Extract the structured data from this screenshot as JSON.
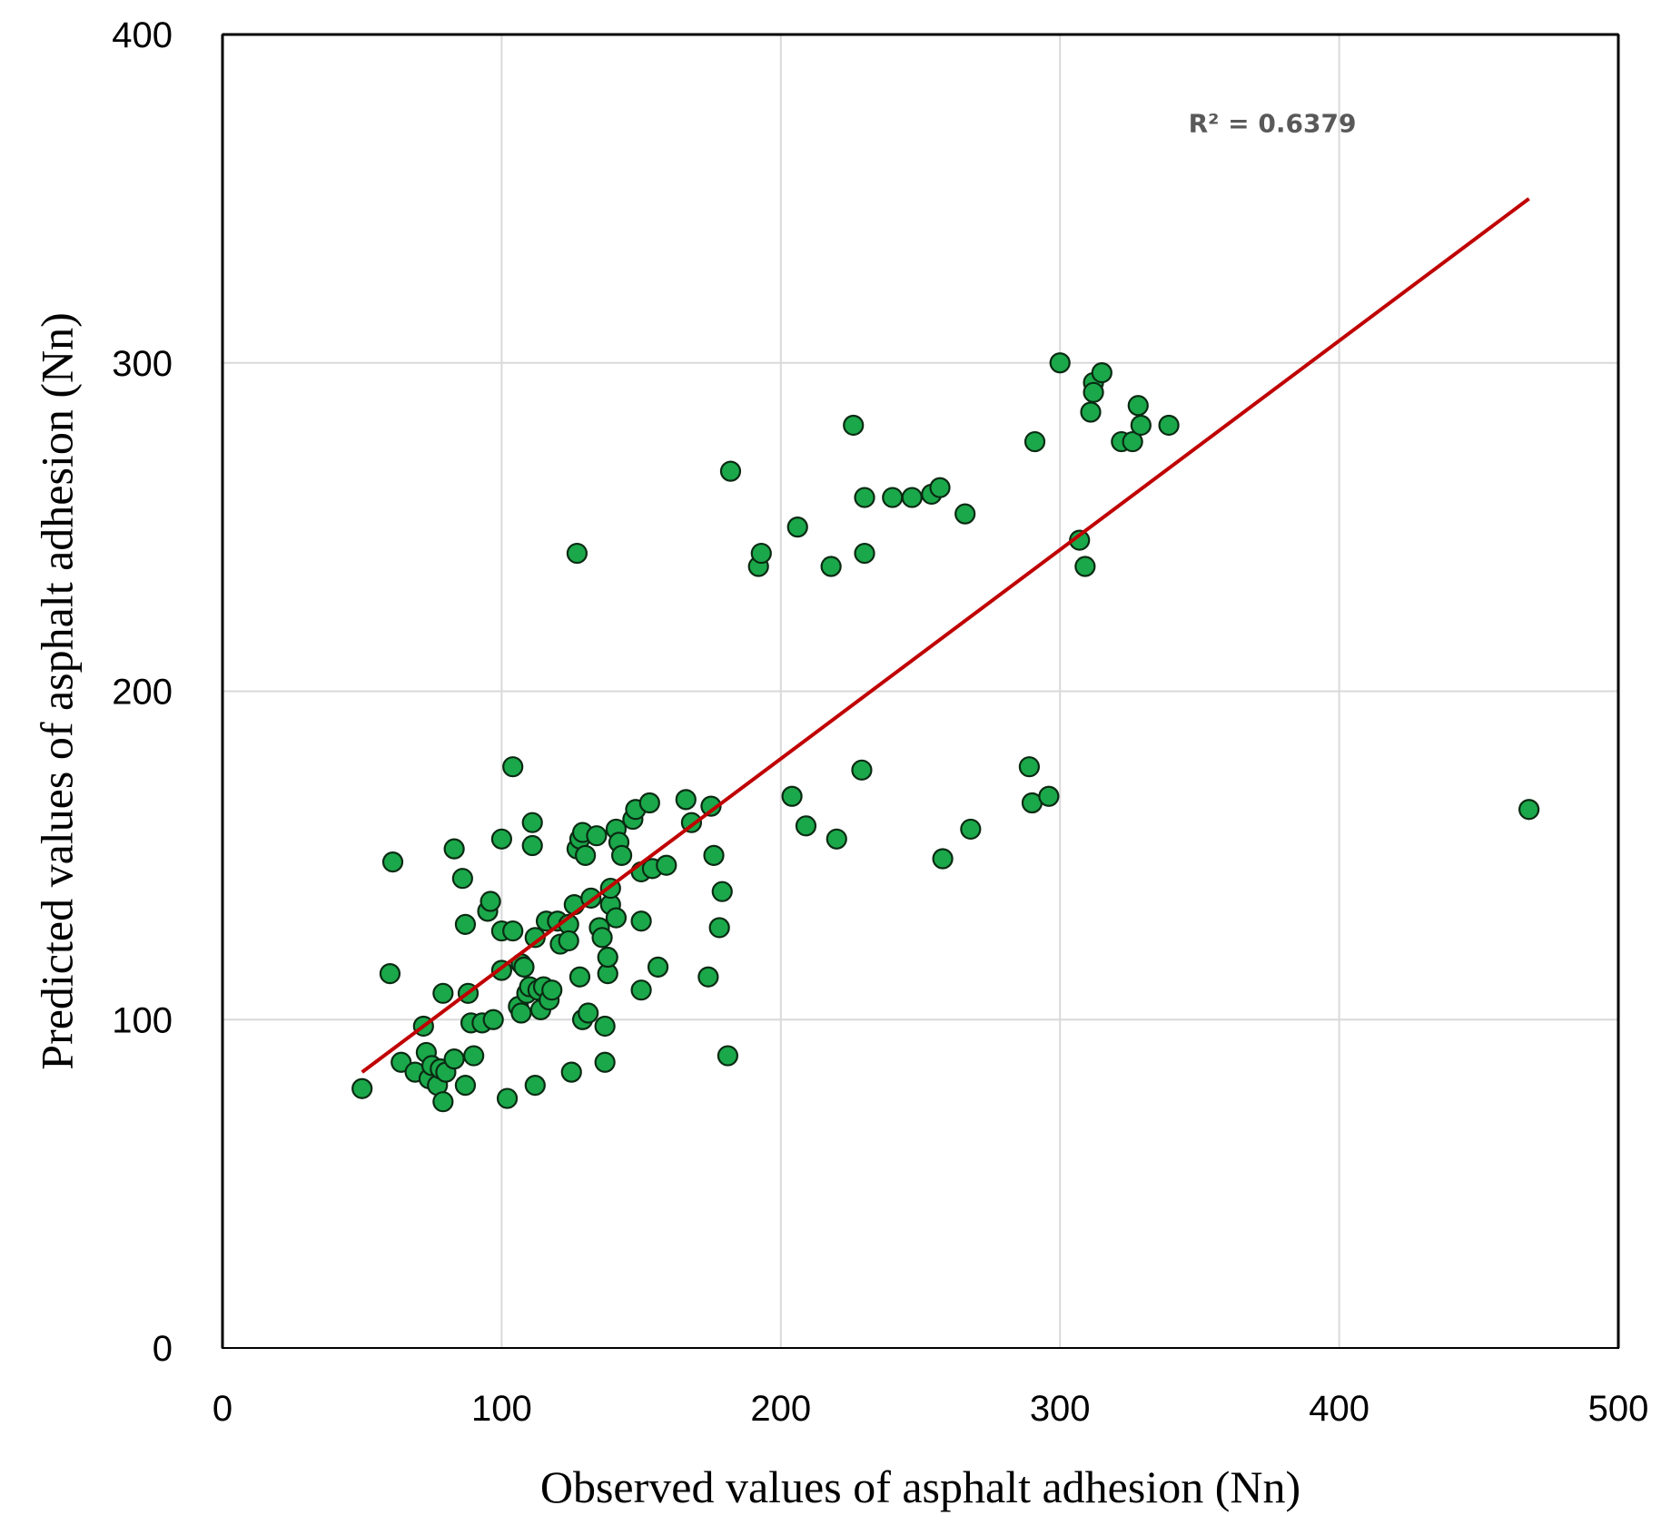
{
  "chart_data": {
    "type": "scatter",
    "xlabel": "Observed values of asphalt adhesion (Nn)",
    "ylabel": "Predicted values of asphalt adhesion (Nn)",
    "xlim": [
      0,
      500
    ],
    "ylim": [
      0,
      400
    ],
    "xticks": [
      "0",
      "100",
      "200",
      "300",
      "400",
      "500"
    ],
    "yticks": [
      "0",
      "100",
      "200",
      "300",
      "400"
    ],
    "grid": true,
    "legend": "none",
    "colors": {
      "point_fill": "#1aa84a",
      "point_stroke": "#0a2a12",
      "trendline": "#c00000",
      "grid": "#d9d9d9",
      "frame": "#000000"
    },
    "annotation": "R² = 0.6379",
    "trendline": {
      "x": [
        50,
        468
      ],
      "y": [
        84,
        350
      ]
    },
    "series": [
      {
        "points": [
          [
            50,
            79
          ],
          [
            60,
            114
          ],
          [
            61,
            148
          ],
          [
            64,
            87
          ],
          [
            69,
            84
          ],
          [
            72,
            98
          ],
          [
            73,
            90
          ],
          [
            74,
            82
          ],
          [
            75,
            86
          ],
          [
            77,
            80
          ],
          [
            78,
            85
          ],
          [
            79,
            75
          ],
          [
            79,
            108
          ],
          [
            80,
            84
          ],
          [
            83,
            88
          ],
          [
            83,
            152
          ],
          [
            86,
            143
          ],
          [
            87,
            80
          ],
          [
            87,
            129
          ],
          [
            88,
            108
          ],
          [
            89,
            99
          ],
          [
            90,
            89
          ],
          [
            93,
            99
          ],
          [
            95,
            133
          ],
          [
            96,
            136
          ],
          [
            97,
            100
          ],
          [
            100,
            155
          ],
          [
            100,
            115
          ],
          [
            100,
            127
          ],
          [
            102,
            76
          ],
          [
            104,
            177
          ],
          [
            104,
            127
          ],
          [
            106,
            104
          ],
          [
            107,
            102
          ],
          [
            107,
            117
          ],
          [
            108,
            116
          ],
          [
            109,
            108
          ],
          [
            110,
            110
          ],
          [
            111,
            160
          ],
          [
            111,
            153
          ],
          [
            112,
            80
          ],
          [
            112,
            125
          ],
          [
            113,
            109
          ],
          [
            114,
            103
          ],
          [
            115,
            110
          ],
          [
            116,
            130
          ],
          [
            117,
            106
          ],
          [
            118,
            109
          ],
          [
            120,
            130
          ],
          [
            121,
            123
          ],
          [
            124,
            129
          ],
          [
            124,
            124
          ],
          [
            125,
            84
          ],
          [
            126,
            135
          ],
          [
            127,
            242
          ],
          [
            127,
            152
          ],
          [
            128,
            113
          ],
          [
            128,
            155
          ],
          [
            129,
            100
          ],
          [
            129,
            157
          ],
          [
            130,
            150
          ],
          [
            131,
            102
          ],
          [
            132,
            137
          ],
          [
            134,
            156
          ],
          [
            135,
            128
          ],
          [
            136,
            125
          ],
          [
            137,
            98
          ],
          [
            137,
            87
          ],
          [
            138,
            114
          ],
          [
            138,
            119
          ],
          [
            139,
            135
          ],
          [
            139,
            140
          ],
          [
            141,
            158
          ],
          [
            141,
            131
          ],
          [
            142,
            154
          ],
          [
            143,
            150
          ],
          [
            147,
            161
          ],
          [
            148,
            164
          ],
          [
            150,
            145
          ],
          [
            150,
            130
          ],
          [
            150,
            109
          ],
          [
            153,
            166
          ],
          [
            154,
            146
          ],
          [
            156,
            116
          ],
          [
            159,
            147
          ],
          [
            166,
            167
          ],
          [
            168,
            160
          ],
          [
            174,
            113
          ],
          [
            175,
            165
          ],
          [
            176,
            150
          ],
          [
            178,
            128
          ],
          [
            179,
            139
          ],
          [
            181,
            89
          ],
          [
            182,
            267
          ],
          [
            192,
            238
          ],
          [
            193,
            242
          ],
          [
            204,
            168
          ],
          [
            206,
            250
          ],
          [
            209,
            159
          ],
          [
            218,
            238
          ],
          [
            220,
            155
          ],
          [
            226,
            281
          ],
          [
            229,
            176
          ],
          [
            230,
            242
          ],
          [
            230,
            259
          ],
          [
            240,
            259
          ],
          [
            247,
            259
          ],
          [
            254,
            260
          ],
          [
            257,
            262
          ],
          [
            258,
            149
          ],
          [
            266,
            254
          ],
          [
            268,
            158
          ],
          [
            289,
            177
          ],
          [
            290,
            166
          ],
          [
            291,
            276
          ],
          [
            296,
            168
          ],
          [
            300,
            300
          ],
          [
            307,
            246
          ],
          [
            309,
            238
          ],
          [
            311,
            285
          ],
          [
            312,
            294
          ],
          [
            312,
            291
          ],
          [
            315,
            297
          ],
          [
            322,
            276
          ],
          [
            326,
            276
          ],
          [
            328,
            287
          ],
          [
            329,
            281
          ],
          [
            339,
            281
          ],
          [
            468,
            164
          ]
        ]
      }
    ]
  }
}
